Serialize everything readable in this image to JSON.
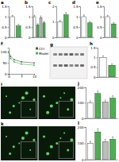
{
  "chart_data": [
    {
      "type": "bar",
      "title": "a",
      "categories": [
        null,
        null
      ],
      "values": [
        1,
        0.55
      ],
      "errors": [
        0.06,
        0.08
      ],
      "colors": [
        "#ffffff",
        "#4caf50"
      ],
      "ylim": [
        0,
        1.5
      ],
      "yticks": [
        0,
        0.5,
        1,
        1.5
      ],
      "tick_labels": "y"
    },
    {
      "type": "bar",
      "title": "b",
      "categories": [
        null,
        null,
        null,
        null
      ],
      "values": [
        1,
        0.6,
        0.95,
        0.7
      ],
      "errors": [
        0.07,
        0.06,
        0.08,
        0.07
      ],
      "colors": [
        "#ffffff",
        "#4caf50",
        "#bdbdbd",
        "#4caf50"
      ],
      "ylim": [
        0,
        1.5
      ],
      "yticks": [
        0,
        0.5,
        1,
        1.5
      ],
      "tick_labels": "y"
    },
    {
      "type": "bar",
      "title": "c",
      "categories": [
        null,
        null
      ],
      "values": [
        1,
        1.45
      ],
      "errors": [
        0.1,
        0.15
      ],
      "colors": [
        "#ffffff",
        "#4caf50"
      ],
      "ylim": [
        0,
        2
      ],
      "yticks": [
        0,
        1,
        2
      ],
      "tick_labels": "y"
    },
    {
      "type": "bar",
      "title": "d",
      "categories": [
        null,
        null
      ],
      "values": [
        1,
        0.7
      ],
      "errors": [
        0.08,
        0.07
      ],
      "colors": [
        "#ffffff",
        "#4caf50"
      ],
      "ylim": [
        0,
        1.5
      ],
      "yticks": [
        0,
        0.5,
        1,
        1.5
      ],
      "tick_labels": "y"
    },
    {
      "type": "bar",
      "title": "e",
      "categories": [
        null,
        null
      ],
      "values": [
        1,
        0.65
      ],
      "errors": [
        0.07,
        0.06
      ],
      "colors": [
        "#ffffff",
        "#4caf50"
      ],
      "ylim": [
        0,
        1.5
      ],
      "yticks": [
        0,
        0.5,
        1,
        1.5
      ],
      "tick_labels": "y"
    },
    {
      "type": "line",
      "title": "f",
      "x": [
        0,
        1,
        3,
        7,
        14
      ],
      "xlim": [
        0,
        14
      ],
      "xticks": [
        0,
        7,
        14
      ],
      "ylim": [
        0,
        120
      ],
      "yticks": [
        0,
        50,
        100
      ],
      "legend": "right",
      "marker": "circle",
      "series": [
        {
          "name": "Ctrl",
          "color": "#555555",
          "values": [
            100,
            80,
            65,
            55,
            50
          ]
        },
        {
          "name": "Model",
          "color": "#4caf50",
          "values": [
            100,
            70,
            55,
            45,
            40
          ]
        }
      ]
    },
    {
      "type": "bar",
      "title": "h",
      "categories": [
        null,
        null
      ],
      "values": [
        1,
        0.6
      ],
      "errors": [
        0.08,
        0.07
      ],
      "colors": [
        "#ffffff",
        "#4caf50"
      ],
      "ylim": [
        0,
        1.5
      ],
      "yticks": [
        0,
        0.5,
        1,
        1.5
      ],
      "tick_labels": "y"
    },
    {
      "type": "bar",
      "title": "j",
      "categories": [
        null,
        null,
        null,
        null
      ],
      "values": [
        100,
        160,
        105,
        130
      ],
      "errors": [
        12,
        18,
        13,
        15
      ],
      "colors": [
        "#ffffff",
        "#4caf50",
        "#bdbdbd",
        "#4caf50"
      ],
      "ylim": [
        0,
        200
      ],
      "yticks": [
        0,
        100,
        200
      ],
      "tick_labels": "y"
    },
    {
      "type": "bar",
      "title": "l",
      "categories": [
        null,
        null,
        null,
        null
      ],
      "values": [
        100,
        170,
        110,
        125
      ],
      "errors": [
        12,
        20,
        14,
        15
      ],
      "colors": [
        "#ffffff",
        "#4caf50",
        "#bdbdbd",
        "#4caf50"
      ],
      "ylim": [
        0,
        200
      ],
      "yticks": [
        0,
        100,
        200
      ],
      "tick_labels": "y"
    }
  ],
  "figure_labels": [
    "g",
    "i",
    "k"
  ]
}
